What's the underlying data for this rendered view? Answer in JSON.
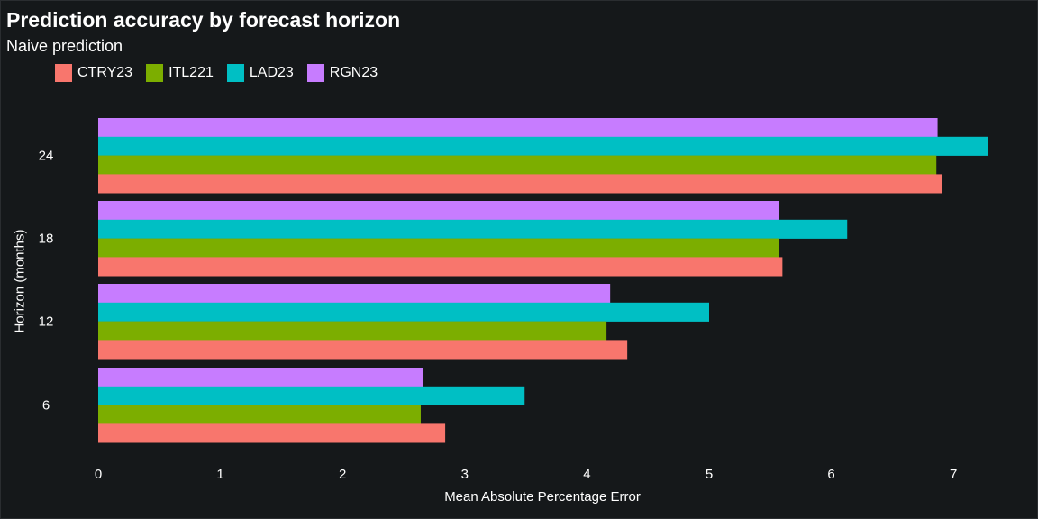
{
  "chart_data": {
    "type": "bar",
    "orientation": "horizontal",
    "title": "Prediction accuracy by forecast horizon",
    "subtitle": "Naive prediction",
    "xlabel": "Mean Absolute Percentage Error",
    "ylabel": "Horizon (months)",
    "xlim": [
      0,
      7.35
    ],
    "xticks": [
      "0",
      "1",
      "2",
      "3",
      "4",
      "5",
      "6",
      "7"
    ],
    "categories": [
      "24",
      "18",
      "12",
      "6"
    ],
    "legend_position": "top-left",
    "grid": false,
    "series": [
      {
        "name": "CTRY23",
        "color": "#f8766d",
        "values": [
          6.91,
          5.6,
          4.33,
          2.84
        ]
      },
      {
        "name": "ITL221",
        "color": "#7cae00",
        "values": [
          6.86,
          5.57,
          4.16,
          2.64
        ]
      },
      {
        "name": "LAD23",
        "color": "#00bfc4",
        "values": [
          7.28,
          6.13,
          5.0,
          3.49
        ]
      },
      {
        "name": "RGN23",
        "color": "#c77cff",
        "values": [
          6.87,
          5.57,
          4.19,
          2.66
        ]
      }
    ]
  }
}
